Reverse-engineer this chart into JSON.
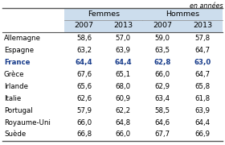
{
  "title_right": "en années",
  "col_groups": [
    {
      "label": "Femmes",
      "cols": [
        "2007",
        "2013"
      ]
    },
    {
      "label": "Hommes",
      "cols": [
        "2007",
        "2013"
      ]
    }
  ],
  "rows": [
    {
      "country": "Allemagne",
      "bold": false,
      "blue": false,
      "values": [
        58.6,
        57.0,
        59.0,
        57.8
      ]
    },
    {
      "country": "Espagne",
      "bold": false,
      "blue": false,
      "values": [
        63.2,
        63.9,
        63.5,
        64.7
      ]
    },
    {
      "country": "France",
      "bold": true,
      "blue": true,
      "values": [
        64.4,
        64.4,
        62.8,
        63.0
      ]
    },
    {
      "country": "Grèce",
      "bold": false,
      "blue": false,
      "values": [
        67.6,
        65.1,
        66.0,
        64.7
      ]
    },
    {
      "country": "Irlande",
      "bold": false,
      "blue": false,
      "values": [
        65.6,
        68.0,
        62.9,
        65.8
      ]
    },
    {
      "country": "Italie",
      "bold": false,
      "blue": false,
      "values": [
        62.6,
        60.9,
        63.4,
        61.8
      ]
    },
    {
      "country": "Portugal",
      "bold": false,
      "blue": false,
      "values": [
        57.9,
        62.2,
        58.5,
        63.9
      ]
    },
    {
      "country": "Royaume-Uni",
      "bold": false,
      "blue": false,
      "values": [
        66.0,
        64.8,
        64.6,
        64.4
      ]
    },
    {
      "country": "Suède",
      "bold": false,
      "blue": false,
      "values": [
        66.8,
        66.0,
        67.7,
        66.9
      ]
    }
  ],
  "header_bg": "#ccdded",
  "france_color": "#1a3e8c",
  "normal_color": "#000000",
  "header_color": "#000000",
  "font_size_data": 6.2,
  "font_size_header": 6.8,
  "font_size_title": 5.8
}
